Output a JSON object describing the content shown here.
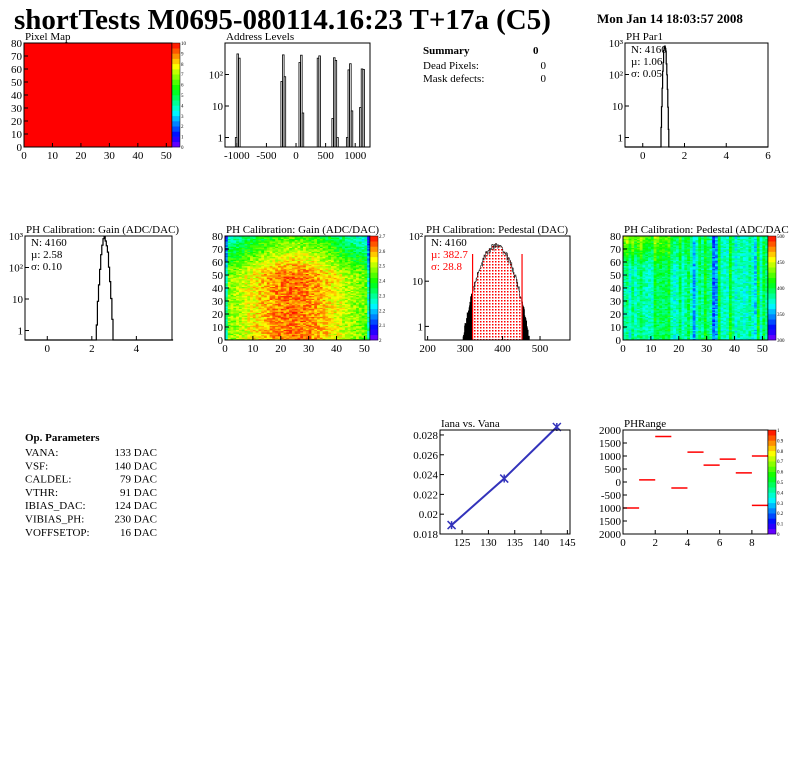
{
  "header": {
    "title": "shortTests M0695-080114.16:23 T+17a (C5)",
    "date": "Mon Jan 14 18:03:57 2008"
  },
  "summary": {
    "title": "Summary",
    "title_value": "0",
    "rows": [
      {
        "label": "Dead Pixels:",
        "value": "0"
      },
      {
        "label": "Mask defects:",
        "value": "0"
      }
    ]
  },
  "op_parameters": {
    "title": "Op. Parameters",
    "rows": [
      {
        "label": "VANA:",
        "value": "133 DAC"
      },
      {
        "label": "VSF:",
        "value": "140 DAC"
      },
      {
        "label": "CALDEL:",
        "value": "79 DAC"
      },
      {
        "label": "VTHR:",
        "value": "91 DAC"
      },
      {
        "label": "IBIAS_DAC:",
        "value": "124 DAC"
      },
      {
        "label": "VIBIAS_PH:",
        "value": "230 DAC"
      },
      {
        "label": "VOFFSETOP:",
        "value": "16 DAC"
      }
    ]
  },
  "colors": {
    "hist_line": "#000000",
    "fit_red": "#ff0000",
    "graph_blue": "#3333bb",
    "map_red": "#ff0000"
  },
  "chart_data": [
    {
      "id": "pixelmap",
      "type": "heatmap",
      "title": "Pixel Map",
      "xlim": [
        0,
        52
      ],
      "ylim": [
        0,
        80
      ],
      "xticks": [
        0,
        10,
        20,
        30,
        40,
        50
      ],
      "yticks": [
        0,
        10,
        20,
        30,
        40,
        50,
        60,
        70,
        80
      ],
      "zlim": [
        0,
        10
      ],
      "zticks": [
        "0",
        "1",
        "2",
        "3",
        "4",
        "5",
        "6",
        "7",
        "8",
        "9",
        "10"
      ],
      "uniform_value": 10
    },
    {
      "id": "address",
      "type": "bar",
      "title": "Address Levels",
      "xlim": [
        -1200,
        1250
      ],
      "ylog": true,
      "ylim": [
        0.5,
        1000
      ],
      "xticks": [
        -1000,
        -500,
        0,
        500,
        1000
      ],
      "yticks": [
        {
          "v": 1,
          "l": "1"
        },
        {
          "v": 10,
          "l": "10"
        },
        {
          "v": 100,
          "l": "10²"
        }
      ],
      "peaks": [
        {
          "x": -985,
          "values": [
            1,
            450,
            330
          ]
        },
        {
          "x": -215,
          "values": [
            60,
            420,
            85
          ]
        },
        {
          "x": 90,
          "values": [
            240,
            410,
            6
          ]
        },
        {
          "x": 385,
          "values": [
            330,
            390
          ]
        },
        {
          "x": 660,
          "values": [
            4,
            340,
            280,
            1
          ]
        },
        {
          "x": 905,
          "values": [
            1,
            140,
            220,
            7
          ]
        },
        {
          "x": 1115,
          "values": [
            9,
            150,
            145
          ]
        }
      ]
    },
    {
      "id": "phpar1",
      "type": "bar",
      "title": "PH Par1",
      "xlim": [
        -0.85,
        6
      ],
      "ylog": true,
      "ylim": [
        0.5,
        1000
      ],
      "xticks": [
        0,
        2,
        4,
        6
      ],
      "yticks": [
        {
          "v": 1,
          "l": "1"
        },
        {
          "v": 10,
          "l": "10"
        },
        {
          "v": 100,
          "l": "10²"
        },
        {
          "v": 1000,
          "l": "10³"
        }
      ],
      "stats": {
        "N": "N: 4160",
        "mu": "µ: 1.06",
        "sigma": "σ: 0.05"
      },
      "N": 4160,
      "mean": 1.06,
      "rms": 0.05,
      "binw": 0.025
    },
    {
      "id": "gainhist",
      "type": "bar",
      "title": "PH Calibration: Gain (ADC/DAC)",
      "xlim": [
        -1,
        5.6
      ],
      "ylog": true,
      "ylim": [
        0.5,
        1000
      ],
      "xticks": [
        0,
        2,
        4
      ],
      "yticks": [
        {
          "v": 1,
          "l": "1"
        },
        {
          "v": 10,
          "l": "10"
        },
        {
          "v": 100,
          "l": "10²"
        },
        {
          "v": 1000,
          "l": "10³"
        }
      ],
      "stats": {
        "N": "N: 4160",
        "mu": "µ: 2.58",
        "sigma": "σ: 0.10"
      },
      "N": 4160,
      "mean": 2.58,
      "rms": 0.1,
      "binw": 0.05
    },
    {
      "id": "gainmap",
      "type": "heatmap",
      "title": "PH Calibration: Gain (ADC/DAC)",
      "xlim": [
        0,
        52
      ],
      "ylim": [
        0,
        80
      ],
      "xticks": [
        0,
        10,
        20,
        30,
        40,
        50
      ],
      "yticks": [
        0,
        10,
        20,
        30,
        40,
        50,
        60,
        70,
        80
      ],
      "zlim": [
        1.95,
        2.75
      ],
      "zticks": [
        "2",
        "2.1",
        "2.2",
        "2.3",
        "2.4",
        "2.5",
        "2.6",
        "2.7"
      ]
    },
    {
      "id": "pedhist",
      "type": "bar",
      "title": "PH Calibration: Pedestal (DAC)",
      "xlim": [
        193,
        580
      ],
      "ylog": true,
      "ylim": [
        0.5,
        100
      ],
      "xticks": [
        200,
        300,
        400,
        500
      ],
      "yticks": [
        {
          "v": 1,
          "l": "1"
        },
        {
          "v": 10,
          "l": "10"
        },
        {
          "v": 100,
          "l": "10²"
        }
      ],
      "stats": {
        "N": "N: 4160",
        "mu": "µ: 382.7",
        "sigma": "σ: 28.8"
      },
      "N": 4160,
      "mean": 382.7,
      "rms": 28.8,
      "binw": 1,
      "fit_range": [
        320,
        452
      ]
    },
    {
      "id": "pedmap",
      "type": "heatmap",
      "title": "PH Calibration: Pedestal (ADC/DAC",
      "xlim": [
        0,
        52
      ],
      "ylim": [
        0,
        80
      ],
      "xticks": [
        0,
        10,
        20,
        30,
        40,
        50
      ],
      "yticks": [
        0,
        10,
        20,
        30,
        40,
        50,
        60,
        70,
        80
      ],
      "zlim": [
        300,
        520
      ],
      "zticks": [
        "300",
        "350",
        "400",
        "450",
        "500"
      ]
    },
    {
      "id": "iana",
      "type": "line",
      "title": "Iana vs. Vana",
      "xlim": [
        120.8,
        145.5
      ],
      "ylim": [
        0.018,
        0.0285
      ],
      "xticks": [
        125,
        130,
        135,
        140,
        145
      ],
      "yticks": [
        {
          "v": 0.018,
          "l": "0.018"
        },
        {
          "v": 0.02,
          "l": "0.02"
        },
        {
          "v": 0.022,
          "l": "0.022"
        },
        {
          "v": 0.024,
          "l": "0.024"
        },
        {
          "v": 0.026,
          "l": "0.026"
        },
        {
          "v": 0.028,
          "l": "0.028"
        }
      ],
      "x": [
        123,
        133,
        143
      ],
      "y": [
        0.0189,
        0.0236,
        0.0288
      ]
    },
    {
      "id": "phrange",
      "type": "heatmap",
      "title": "PHRange",
      "xlim": [
        0,
        9
      ],
      "ylim": [
        -2000,
        2000
      ],
      "xticks": [
        0,
        2,
        4,
        6,
        8
      ],
      "yticks": [
        {
          "v": 2000,
          "l": "2000"
        },
        {
          "v": 1500,
          "l": "1500"
        },
        {
          "v": 1000,
          "l": "1000"
        },
        {
          "v": 500,
          "l": "500"
        },
        {
          "v": 0,
          "l": "0"
        },
        {
          "v": -500,
          "l": "-500"
        },
        {
          "v": -1000,
          "l": "1000"
        },
        {
          "v": -1500,
          "l": "1500"
        },
        {
          "v": -2000,
          "l": "2000"
        }
      ],
      "zlim": [
        0,
        1
      ],
      "zticks": [
        "0",
        "0.1",
        "0.2",
        "0.3",
        "0.4",
        "0.5",
        "0.6",
        "0.7",
        "0.8",
        "0.9",
        "1"
      ],
      "segments": [
        {
          "bin": 0,
          "y": -1000
        },
        {
          "bin": 1,
          "y": 80
        },
        {
          "bin": 2,
          "y": 1750
        },
        {
          "bin": 3,
          "y": -230
        },
        {
          "bin": 4,
          "y": 1150
        },
        {
          "bin": 5,
          "y": 650
        },
        {
          "bin": 6,
          "y": 880
        },
        {
          "bin": 7,
          "y": 350
        },
        {
          "bin": 8,
          "y": 1000
        },
        {
          "bin": 8,
          "y": -900
        }
      ]
    }
  ]
}
